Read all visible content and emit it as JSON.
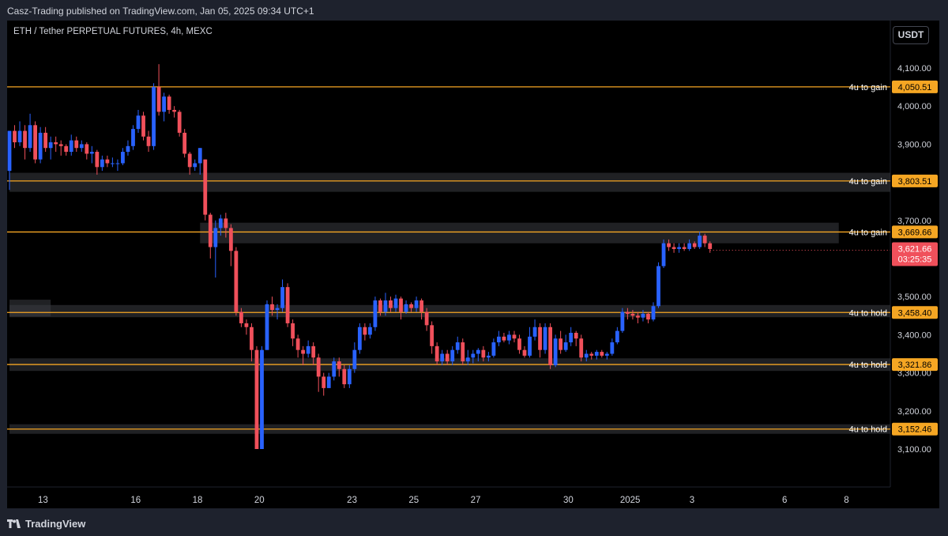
{
  "header": {
    "published": "Casz-Trading published on TradingView.com, Jan 05, 2025 09:34 UTC+1"
  },
  "symbol": {
    "title": "ETH / Tether PERPETUAL FUTURES, 4h, MEXC"
  },
  "currency_button": "USDT",
  "footer": {
    "brand": "TradingView"
  },
  "colors": {
    "up": "#2962ff",
    "down": "#f0505b",
    "level": "#f5a623",
    "last": "#f0505b",
    "background": "#000000"
  },
  "chart_data": {
    "type": "candlestick",
    "title": "ETH / Tether PERPETUAL FUTURES, 4h, MEXC",
    "ylim": [
      3070,
      4155
    ],
    "y_ticks": [
      {
        "value": 4100,
        "label": "4,100.00"
      },
      {
        "value": 4000,
        "label": "4,000.00"
      },
      {
        "value": 3900,
        "label": "3,900.00"
      },
      {
        "value": 3700,
        "label": "3,700.00"
      },
      {
        "value": 3500,
        "label": "3,500.00"
      },
      {
        "value": 3400,
        "label": "3,400.00"
      },
      {
        "value": 3300,
        "label": "3,300.00"
      },
      {
        "value": 3200,
        "label": "3,200.00"
      },
      {
        "value": 3100,
        "label": "3,100.00"
      }
    ],
    "x_labels": [
      {
        "t": 6.5,
        "label": "13"
      },
      {
        "t": 24.5,
        "label": "16"
      },
      {
        "t": 36.5,
        "label": "18"
      },
      {
        "t": 48.5,
        "label": "20"
      },
      {
        "t": 66.5,
        "label": "23"
      },
      {
        "t": 78.5,
        "label": "25"
      },
      {
        "t": 90.5,
        "label": "27"
      },
      {
        "t": 108.5,
        "label": "30"
      },
      {
        "t": 120.5,
        "label": "2025"
      },
      {
        "t": 132.5,
        "label": "3"
      },
      {
        "t": 150.5,
        "label": "6"
      },
      {
        "t": 162.5,
        "label": "8"
      }
    ],
    "levels": [
      {
        "value": 4050.51,
        "label": "4u to gain",
        "price": "4,050.51"
      },
      {
        "value": 3803.51,
        "label": "4u to gain",
        "price": "3,803.51"
      },
      {
        "value": 3669.66,
        "label": "4u to gain",
        "price": "3,669.66"
      },
      {
        "value": 3458.4,
        "label": "4u to hold",
        "price": "3,458.40"
      },
      {
        "value": 3321.86,
        "label": "4u to hold",
        "price": "3,321.86"
      },
      {
        "value": 3152.46,
        "label": "4u to hold",
        "price": "3,152.46"
      }
    ],
    "zones": [
      {
        "t_start": 0,
        "t_end": 172,
        "low": 3775,
        "high": 3825
      },
      {
        "t_start": 37,
        "t_end": 161,
        "low": 3640,
        "high": 3694
      },
      {
        "t_start": 0,
        "t_end": 8,
        "low": 3448,
        "high": 3492
      },
      {
        "t_start": 0,
        "t_end": 172,
        "low": 3446,
        "high": 3478
      },
      {
        "t_start": 0,
        "t_end": 172,
        "low": 3305,
        "high": 3338
      },
      {
        "t_start": 0,
        "t_end": 172,
        "low": 3140,
        "high": 3165
      }
    ],
    "last_price": {
      "value": 3621.66,
      "label": "3,621.66",
      "countdown": "03:25:35"
    },
    "candles": [
      [
        3830,
        3935,
        3800,
        3780
      ],
      [
        3935,
        3905,
        3950,
        3890
      ],
      [
        3905,
        3935,
        3960,
        3895
      ],
      [
        3935,
        3890,
        3950,
        3860
      ],
      [
        3890,
        3950,
        3980,
        3880
      ],
      [
        3950,
        3860,
        3960,
        3850
      ],
      [
        3860,
        3930,
        3945,
        3850
      ],
      [
        3930,
        3890,
        3945,
        3880
      ],
      [
        3890,
        3905,
        3920,
        3860
      ],
      [
        3905,
        3900,
        3920,
        3880
      ],
      [
        3900,
        3895,
        3910,
        3870
      ],
      [
        3895,
        3880,
        3900,
        3870
      ],
      [
        3880,
        3910,
        3925,
        3870
      ],
      [
        3910,
        3890,
        3920,
        3880
      ],
      [
        3890,
        3900,
        3910,
        3880
      ],
      [
        3900,
        3875,
        3905,
        3860
      ],
      [
        3875,
        3880,
        3895,
        3850
      ],
      [
        3880,
        3840,
        3885,
        3820
      ],
      [
        3840,
        3860,
        3870,
        3830
      ],
      [
        3860,
        3850,
        3870,
        3840
      ],
      [
        3850,
        3850,
        3865,
        3840
      ],
      [
        3850,
        3850,
        3860,
        3830
      ],
      [
        3850,
        3880,
        3890,
        3845
      ],
      [
        3880,
        3895,
        3910,
        3870
      ],
      [
        3895,
        3940,
        3950,
        3885
      ],
      [
        3940,
        3975,
        3990,
        3930
      ],
      [
        3975,
        3920,
        3985,
        3910
      ],
      [
        3920,
        3895,
        3935,
        3880
      ],
      [
        3895,
        4050,
        4060,
        3885
      ],
      [
        4050,
        3985,
        4110,
        3975
      ],
      [
        3985,
        4025,
        4035,
        3960
      ],
      [
        4025,
        3990,
        4030,
        3980
      ],
      [
        3990,
        3985,
        4000,
        3970
      ],
      [
        3985,
        3930,
        3990,
        3920
      ],
      [
        3930,
        3875,
        3940,
        3865
      ],
      [
        3875,
        3840,
        3880,
        3820
      ],
      [
        3840,
        3850,
        3860,
        3830
      ],
      [
        3850,
        3890,
        3860,
        3820
      ],
      [
        3860,
        3715,
        3860,
        3700
      ],
      [
        3715,
        3630,
        3720,
        3600
      ],
      [
        3630,
        3680,
        3700,
        3550
      ],
      [
        3680,
        3705,
        3715,
        3660
      ],
      [
        3705,
        3680,
        3720,
        3655
      ],
      [
        3680,
        3620,
        3690,
        3580
      ],
      [
        3620,
        3460,
        3630,
        3450
      ],
      [
        3460,
        3430,
        3470,
        3420
      ],
      [
        3430,
        3420,
        3440,
        3400
      ],
      [
        3420,
        3360,
        3430,
        3330
      ],
      [
        3360,
        3100,
        3370,
        3100
      ],
      [
        3100,
        3360,
        3370,
        3100
      ],
      [
        3360,
        3480,
        3490,
        3360
      ],
      [
        3480,
        3465,
        3500,
        3450
      ],
      [
        3465,
        3470,
        3480,
        3440
      ],
      [
        3470,
        3525,
        3545,
        3460
      ],
      [
        3525,
        3430,
        3535,
        3420
      ],
      [
        3430,
        3390,
        3440,
        3370
      ],
      [
        3390,
        3360,
        3400,
        3340
      ],
      [
        3360,
        3350,
        3370,
        3320
      ],
      [
        3350,
        3370,
        3385,
        3340
      ],
      [
        3370,
        3340,
        3380,
        3320
      ],
      [
        3340,
        3290,
        3350,
        3250
      ],
      [
        3290,
        3260,
        3300,
        3240
      ],
      [
        3260,
        3290,
        3300,
        3260
      ],
      [
        3290,
        3330,
        3340,
        3280
      ],
      [
        3330,
        3310,
        3340,
        3290
      ],
      [
        3310,
        3270,
        3320,
        3260
      ],
      [
        3270,
        3310,
        3320,
        3260
      ],
      [
        3310,
        3360,
        3380,
        3300
      ],
      [
        3360,
        3420,
        3430,
        3350
      ],
      [
        3420,
        3400,
        3430,
        3385
      ],
      [
        3400,
        3420,
        3430,
        3390
      ],
      [
        3420,
        3490,
        3500,
        3410
      ],
      [
        3490,
        3460,
        3495,
        3450
      ],
      [
        3460,
        3490,
        3510,
        3450
      ],
      [
        3490,
        3470,
        3500,
        3460
      ],
      [
        3470,
        3495,
        3505,
        3460
      ],
      [
        3495,
        3460,
        3500,
        3440
      ],
      [
        3460,
        3480,
        3490,
        3455
      ],
      [
        3480,
        3470,
        3485,
        3460
      ],
      [
        3470,
        3490,
        3500,
        3460
      ],
      [
        3490,
        3460,
        3495,
        3440
      ],
      [
        3460,
        3425,
        3470,
        3410
      ],
      [
        3425,
        3370,
        3435,
        3350
      ],
      [
        3370,
        3330,
        3380,
        3320
      ],
      [
        3330,
        3350,
        3360,
        3320
      ],
      [
        3350,
        3330,
        3360,
        3320
      ],
      [
        3330,
        3360,
        3370,
        3320
      ],
      [
        3360,
        3380,
        3395,
        3350
      ],
      [
        3380,
        3330,
        3390,
        3320
      ],
      [
        3330,
        3340,
        3360,
        3320
      ],
      [
        3340,
        3350,
        3360,
        3325
      ],
      [
        3350,
        3360,
        3365,
        3330
      ],
      [
        3360,
        3340,
        3370,
        3330
      ],
      [
        3340,
        3345,
        3355,
        3330
      ],
      [
        3345,
        3380,
        3390,
        3340
      ],
      [
        3380,
        3395,
        3410,
        3370
      ],
      [
        3395,
        3385,
        3405,
        3380
      ],
      [
        3385,
        3400,
        3410,
        3375
      ],
      [
        3400,
        3390,
        3410,
        3380
      ],
      [
        3390,
        3360,
        3400,
        3350
      ],
      [
        3360,
        3345,
        3370,
        3340
      ],
      [
        3345,
        3395,
        3420,
        3340
      ],
      [
        3395,
        3420,
        3440,
        3385
      ],
      [
        3420,
        3360,
        3430,
        3340
      ],
      [
        3360,
        3420,
        3430,
        3350
      ],
      [
        3420,
        3320,
        3430,
        3310
      ],
      [
        3320,
        3390,
        3400,
        3315
      ],
      [
        3390,
        3360,
        3410,
        3350
      ],
      [
        3360,
        3380,
        3400,
        3355
      ],
      [
        3380,
        3405,
        3420,
        3370
      ],
      [
        3405,
        3390,
        3410,
        3370
      ],
      [
        3390,
        3340,
        3400,
        3330
      ],
      [
        3340,
        3350,
        3360,
        3330
      ],
      [
        3350,
        3345,
        3355,
        3335
      ],
      [
        3345,
        3355,
        3360,
        3335
      ],
      [
        3355,
        3345,
        3360,
        3340
      ],
      [
        3345,
        3350,
        3355,
        3335
      ],
      [
        3350,
        3380,
        3390,
        3345
      ],
      [
        3380,
        3410,
        3420,
        3375
      ],
      [
        3410,
        3460,
        3470,
        3405
      ],
      [
        3460,
        3455,
        3470,
        3440
      ],
      [
        3455,
        3450,
        3465,
        3440
      ],
      [
        3450,
        3445,
        3460,
        3430
      ],
      [
        3445,
        3455,
        3465,
        3435
      ],
      [
        3455,
        3440,
        3460,
        3430
      ],
      [
        3440,
        3475,
        3485,
        3435
      ],
      [
        3475,
        3580,
        3590,
        3470
      ],
      [
        3580,
        3640,
        3650,
        3575
      ],
      [
        3640,
        3630,
        3650,
        3620
      ],
      [
        3630,
        3625,
        3640,
        3615
      ],
      [
        3625,
        3630,
        3640,
        3615
      ],
      [
        3630,
        3625,
        3640,
        3620
      ],
      [
        3625,
        3640,
        3650,
        3620
      ],
      [
        3640,
        3630,
        3645,
        3625
      ],
      [
        3630,
        3660,
        3670,
        3625
      ],
      [
        3660,
        3640,
        3665,
        3630
      ],
      [
        3640,
        3625,
        3645,
        3615
      ]
    ]
  }
}
